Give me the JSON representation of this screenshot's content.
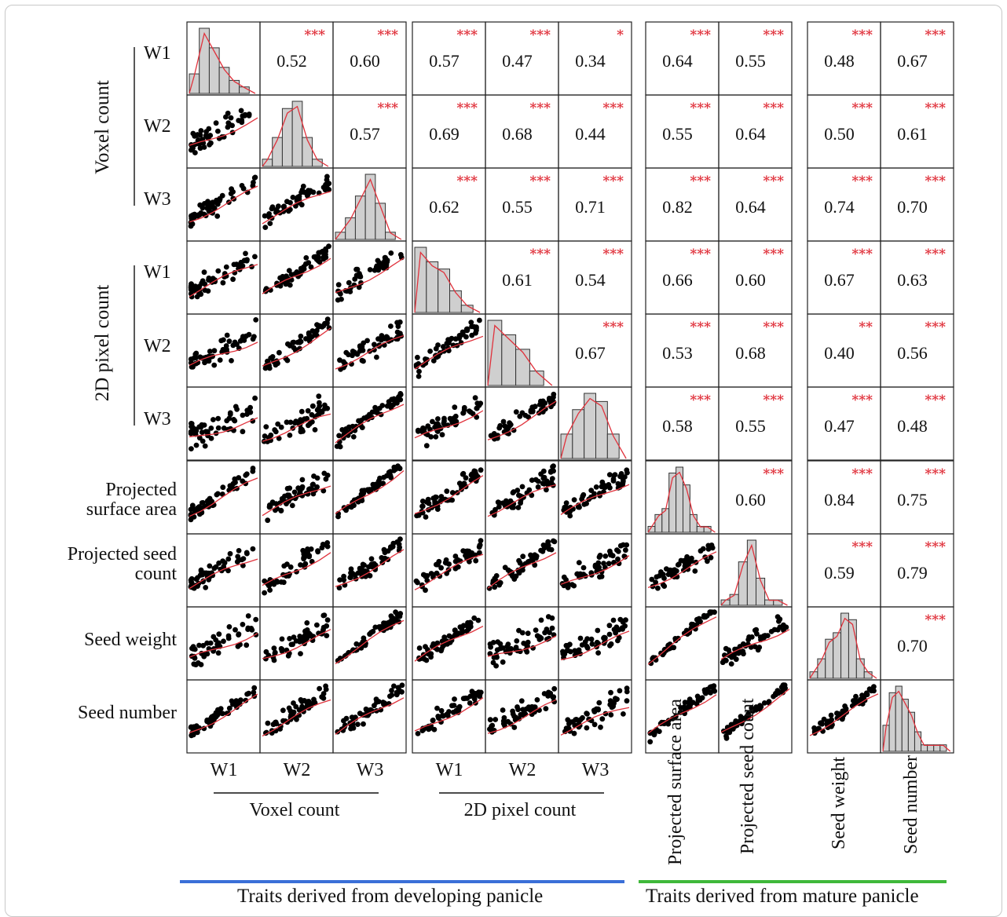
{
  "chart_data": {
    "type": "scatter",
    "title": "",
    "variables": [
      {
        "group": "Voxel count",
        "name": "W1"
      },
      {
        "group": "Voxel count",
        "name": "W2"
      },
      {
        "group": "Voxel count",
        "name": "W3"
      },
      {
        "group": "2D pixel count",
        "name": "W1"
      },
      {
        "group": "2D pixel count",
        "name": "W2"
      },
      {
        "group": "2D pixel count",
        "name": "W3"
      },
      {
        "group": "",
        "name": "Projected surface area"
      },
      {
        "group": "",
        "name": "Projected seed count"
      },
      {
        "group": "",
        "name": "Seed weight"
      },
      {
        "group": "",
        "name": "Seed number"
      }
    ],
    "row_labels": [
      "W1",
      "W2",
      "W3",
      "W1",
      "W2",
      "W3",
      "Projected surface area",
      "Projected seed count",
      "Seed weight",
      "Seed number"
    ],
    "row_groups": [
      "Voxel count",
      "2D pixel count"
    ],
    "col_labels": [
      "W1",
      "W2",
      "W3",
      "W1",
      "W2",
      "W3"
    ],
    "col_groups": [
      "Voxel count",
      "2D pixel count"
    ],
    "col_labels_vertical": [
      "Projected surface area",
      "Projected seed count",
      "Seed weight",
      "Seed number"
    ],
    "footer_groups": [
      {
        "label": "Traits derived from developing panicle",
        "color": "#3a6fd8"
      },
      {
        "label": "Traits derived from mature panicle",
        "color": "#3fb83a"
      }
    ],
    "correlations": [
      {
        "row": 1,
        "col": 2,
        "r": "0.52",
        "sig": "***"
      },
      {
        "row": 1,
        "col": 3,
        "r": "0.60",
        "sig": "***"
      },
      {
        "row": 1,
        "col": 4,
        "r": "0.57",
        "sig": "***"
      },
      {
        "row": 1,
        "col": 5,
        "r": "0.47",
        "sig": "***"
      },
      {
        "row": 1,
        "col": 6,
        "r": "0.34",
        "sig": "*"
      },
      {
        "row": 1,
        "col": 7,
        "r": "0.64",
        "sig": "***"
      },
      {
        "row": 1,
        "col": 8,
        "r": "0.55",
        "sig": "***"
      },
      {
        "row": 1,
        "col": 9,
        "r": "0.48",
        "sig": "***"
      },
      {
        "row": 1,
        "col": 10,
        "r": "0.67",
        "sig": "***"
      },
      {
        "row": 2,
        "col": 3,
        "r": "0.57",
        "sig": "***"
      },
      {
        "row": 2,
        "col": 4,
        "r": "0.69",
        "sig": "***"
      },
      {
        "row": 2,
        "col": 5,
        "r": "0.68",
        "sig": "***"
      },
      {
        "row": 2,
        "col": 6,
        "r": "0.44",
        "sig": "***"
      },
      {
        "row": 2,
        "col": 7,
        "r": "0.55",
        "sig": "***"
      },
      {
        "row": 2,
        "col": 8,
        "r": "0.64",
        "sig": "***"
      },
      {
        "row": 2,
        "col": 9,
        "r": "0.50",
        "sig": "***"
      },
      {
        "row": 2,
        "col": 10,
        "r": "0.61",
        "sig": "***"
      },
      {
        "row": 3,
        "col": 4,
        "r": "0.62",
        "sig": "***"
      },
      {
        "row": 3,
        "col": 5,
        "r": "0.55",
        "sig": "***"
      },
      {
        "row": 3,
        "col": 6,
        "r": "0.71",
        "sig": "***"
      },
      {
        "row": 3,
        "col": 7,
        "r": "0.82",
        "sig": "***"
      },
      {
        "row": 3,
        "col": 8,
        "r": "0.64",
        "sig": "***"
      },
      {
        "row": 3,
        "col": 9,
        "r": "0.74",
        "sig": "***"
      },
      {
        "row": 3,
        "col": 10,
        "r": "0.70",
        "sig": "***"
      },
      {
        "row": 4,
        "col": 5,
        "r": "0.61",
        "sig": "***"
      },
      {
        "row": 4,
        "col": 6,
        "r": "0.54",
        "sig": "***"
      },
      {
        "row": 4,
        "col": 7,
        "r": "0.66",
        "sig": "***"
      },
      {
        "row": 4,
        "col": 8,
        "r": "0.60",
        "sig": "***"
      },
      {
        "row": 4,
        "col": 9,
        "r": "0.67",
        "sig": "***"
      },
      {
        "row": 4,
        "col": 10,
        "r": "0.63",
        "sig": "***"
      },
      {
        "row": 5,
        "col": 6,
        "r": "0.67",
        "sig": "***"
      },
      {
        "row": 5,
        "col": 7,
        "r": "0.53",
        "sig": "***"
      },
      {
        "row": 5,
        "col": 8,
        "r": "0.68",
        "sig": "***"
      },
      {
        "row": 5,
        "col": 9,
        "r": "0.40",
        "sig": "**"
      },
      {
        "row": 5,
        "col": 10,
        "r": "0.56",
        "sig": "***"
      },
      {
        "row": 6,
        "col": 7,
        "r": "0.58",
        "sig": "***"
      },
      {
        "row": 6,
        "col": 8,
        "r": "0.55",
        "sig": "***"
      },
      {
        "row": 6,
        "col": 9,
        "r": "0.47",
        "sig": "***"
      },
      {
        "row": 6,
        "col": 10,
        "r": "0.48",
        "sig": "***"
      },
      {
        "row": 7,
        "col": 8,
        "r": "0.60",
        "sig": "***"
      },
      {
        "row": 7,
        "col": 9,
        "r": "0.84",
        "sig": "***"
      },
      {
        "row": 7,
        "col": 10,
        "r": "0.75",
        "sig": "***"
      },
      {
        "row": 8,
        "col": 9,
        "r": "0.59",
        "sig": "***"
      },
      {
        "row": 8,
        "col": 10,
        "r": "0.79",
        "sig": "***"
      },
      {
        "row": 9,
        "col": 10,
        "r": "0.70",
        "sig": "***"
      }
    ],
    "histograms": [
      [
        3,
        10,
        7,
        4,
        2,
        1
      ],
      [
        1,
        4,
        8,
        9,
        4,
        1
      ],
      [
        1,
        3,
        6,
        9,
        5,
        1
      ],
      [
        9,
        7,
        6,
        3,
        1
      ],
      [
        9,
        7,
        5,
        2
      ],
      [
        3,
        6,
        8,
        7,
        3
      ],
      [
        1,
        3,
        4,
        10,
        11,
        8,
        3,
        1,
        1
      ],
      [
        1,
        2,
        8,
        12,
        5,
        1,
        1
      ],
      [
        1,
        3,
        6,
        7,
        10,
        9,
        3,
        1
      ],
      [
        4,
        9,
        10,
        8,
        6,
        3,
        1,
        1,
        1,
        1
      ]
    ],
    "colors": {
      "points": "#000000",
      "smoother": "#e0323c",
      "stars": "#e0323c",
      "hist_fill": "#cfcfcf"
    }
  }
}
